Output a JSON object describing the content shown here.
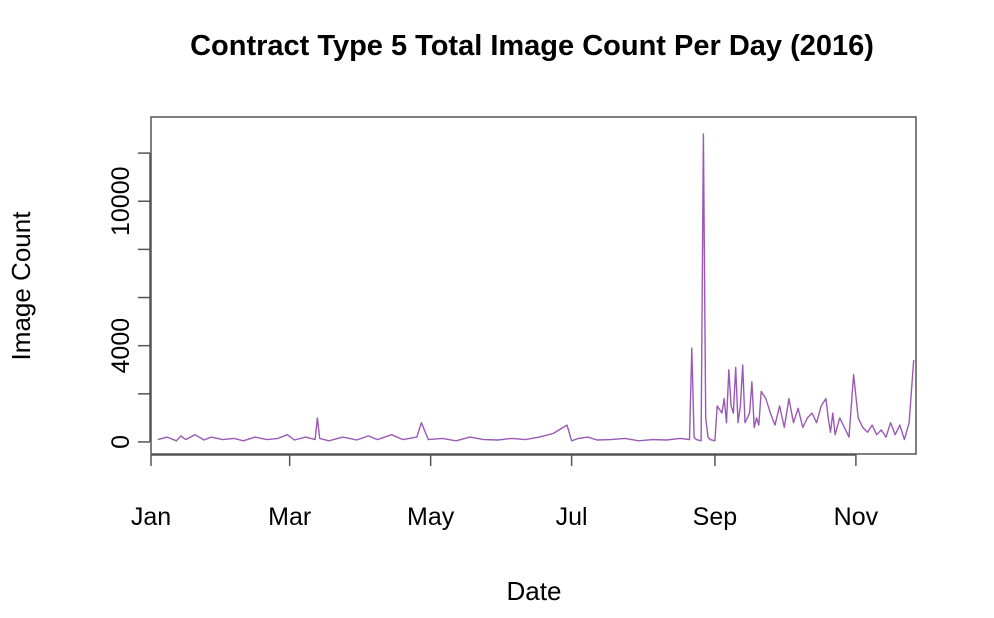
{
  "chart_data": {
    "type": "line",
    "title": "Contract Type 5 Total Image Count Per Day (2016)",
    "xlabel": "Date",
    "ylabel": "Image Count",
    "x_range": [
      "2016-01-01",
      "2016-11-27"
    ],
    "ylim": [
      -500,
      13500
    ],
    "x_ticks": [
      {
        "date": "2016-01-01",
        "label": "Jan"
      },
      {
        "date": "2016-03-01",
        "label": "Mar"
      },
      {
        "date": "2016-05-01",
        "label": "May"
      },
      {
        "date": "2016-07-01",
        "label": "Jul"
      },
      {
        "date": "2016-09-01",
        "label": "Sep"
      },
      {
        "date": "2016-11-01",
        "label": "Nov"
      }
    ],
    "y_ticks": [
      {
        "value": 0,
        "label": "0"
      },
      {
        "value": 2000,
        "label": ""
      },
      {
        "value": 4000,
        "label": "4000"
      },
      {
        "value": 6000,
        "label": ""
      },
      {
        "value": 8000,
        "label": ""
      },
      {
        "value": 10000,
        "label": "10000"
      },
      {
        "value": 12000,
        "label": ""
      }
    ],
    "grid": false,
    "legend": "none",
    "line_color": "#9b59b6",
    "series": [
      {
        "x": [
          "2016-01-04",
          "2016-01-08",
          "2016-01-12",
          "2016-01-14",
          "2016-01-16",
          "2016-01-20",
          "2016-01-24",
          "2016-01-27",
          "2016-02-01",
          "2016-02-06",
          "2016-02-10",
          "2016-02-15",
          "2016-02-20",
          "2016-02-25",
          "2016-02-29",
          "2016-03-03",
          "2016-03-08",
          "2016-03-12",
          "2016-03-13",
          "2016-03-14",
          "2016-03-18",
          "2016-03-24",
          "2016-03-30",
          "2016-04-04",
          "2016-04-08",
          "2016-04-14",
          "2016-04-19",
          "2016-04-25",
          "2016-04-27",
          "2016-04-30",
          "2016-05-06",
          "2016-05-12",
          "2016-05-18",
          "2016-05-24",
          "2016-05-30",
          "2016-06-05",
          "2016-06-11",
          "2016-06-17",
          "2016-06-23",
          "2016-06-29",
          "2016-07-01",
          "2016-07-04",
          "2016-07-08",
          "2016-07-12",
          "2016-07-18",
          "2016-07-24",
          "2016-07-30",
          "2016-08-05",
          "2016-08-11",
          "2016-08-17",
          "2016-08-21",
          "2016-08-22",
          "2016-08-23",
          "2016-08-24",
          "2016-08-26",
          "2016-08-27",
          "2016-08-28",
          "2016-08-29",
          "2016-08-30",
          "2016-09-01",
          "2016-09-02",
          "2016-09-04",
          "2016-09-05",
          "2016-09-06",
          "2016-09-07",
          "2016-09-08",
          "2016-09-09",
          "2016-09-10",
          "2016-09-11",
          "2016-09-12",
          "2016-09-13",
          "2016-09-14",
          "2016-09-15",
          "2016-09-16",
          "2016-09-17",
          "2016-09-18",
          "2016-09-19",
          "2016-09-20",
          "2016-09-21",
          "2016-09-23",
          "2016-09-25",
          "2016-09-27",
          "2016-09-29",
          "2016-10-01",
          "2016-10-03",
          "2016-10-05",
          "2016-10-07",
          "2016-10-09",
          "2016-10-11",
          "2016-10-13",
          "2016-10-15",
          "2016-10-17",
          "2016-10-19",
          "2016-10-20",
          "2016-10-21",
          "2016-10-22",
          "2016-10-23",
          "2016-10-25",
          "2016-10-27",
          "2016-10-29",
          "2016-10-31",
          "2016-11-02",
          "2016-11-04",
          "2016-11-06",
          "2016-11-08",
          "2016-11-10",
          "2016-11-12",
          "2016-11-14",
          "2016-11-16",
          "2016-11-18",
          "2016-11-20",
          "2016-11-22",
          "2016-11-24",
          "2016-11-26"
        ],
        "values": [
          100,
          200,
          50,
          250,
          100,
          300,
          80,
          200,
          100,
          150,
          50,
          200,
          100,
          150,
          300,
          80,
          200,
          100,
          1000,
          150,
          50,
          200,
          80,
          250,
          100,
          300,
          100,
          200,
          800,
          100,
          150,
          50,
          200,
          100,
          80,
          150,
          100,
          200,
          350,
          700,
          50,
          150,
          200,
          80,
          100,
          150,
          50,
          100,
          80,
          150,
          100,
          3900,
          200,
          100,
          50,
          12800,
          1000,
          200,
          100,
          50,
          1500,
          1200,
          1800,
          800,
          3000,
          1500,
          1200,
          3100,
          800,
          1500,
          3200,
          800,
          1000,
          1200,
          2500,
          600,
          1000,
          700,
          2100,
          1800,
          1200,
          700,
          1500,
          600,
          1800,
          800,
          1400,
          600,
          1000,
          1200,
          800,
          1500,
          1800,
          1000,
          400,
          1200,
          300,
          1000,
          600,
          200,
          2800,
          1000,
          600,
          400,
          700,
          300,
          500,
          200,
          800,
          300,
          700,
          100,
          800,
          3400
        ]
      }
    ]
  }
}
